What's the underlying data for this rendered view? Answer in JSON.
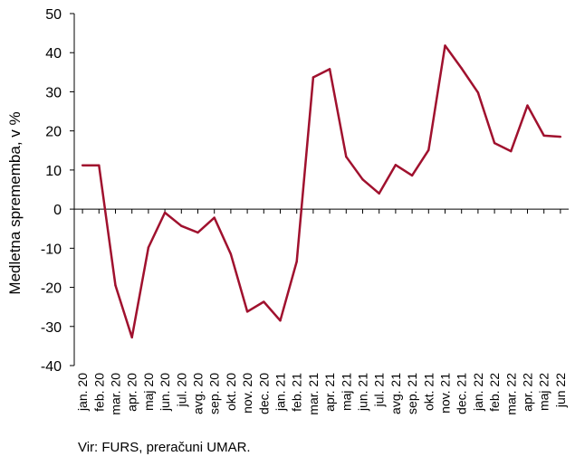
{
  "chart_data": {
    "type": "line",
    "ylabel": "Medletna sprememba, v %",
    "ylim": [
      -40,
      50
    ],
    "yticks": [
      -40,
      -30,
      -20,
      -10,
      0,
      10,
      20,
      30,
      40,
      50
    ],
    "categories": [
      "jan. 20",
      "feb. 20",
      "mar. 20",
      "apr. 20",
      "maj 20",
      "jun. 20",
      "jul. 20",
      "avg. 20",
      "sep. 20",
      "okt. 20",
      "nov. 20",
      "dec. 20",
      "jan. 21",
      "feb. 21",
      "mar. 21",
      "apr. 21",
      "maj 21",
      "jun. 21",
      "jul. 21",
      "avg. 21",
      "sep. 21",
      "okt. 21",
      "nov. 21",
      "dec. 21",
      "jan. 22",
      "feb. 22",
      "mar. 22",
      "apr. 22",
      "maj 22",
      "jun 22"
    ],
    "series": [
      {
        "values": [
          11.2,
          11.2,
          -19.5,
          -32.8,
          -9.8,
          -0.9,
          -4.3,
          -6.0,
          -2.2,
          -11.5,
          -26.2,
          -23.7,
          -28.5,
          -13.4,
          33.7,
          35.8,
          13.4,
          7.6,
          4.0,
          11.3,
          8.6,
          15.1,
          41.8,
          36.0,
          29.8,
          16.9,
          14.8,
          26.5,
          18.8,
          18.5
        ]
      }
    ],
    "colors": {
      "line": "#a0112e",
      "axis": "#000000"
    },
    "grid": false,
    "legend": false
  },
  "source_note": "Vir: FURS, preračuni UMAR."
}
